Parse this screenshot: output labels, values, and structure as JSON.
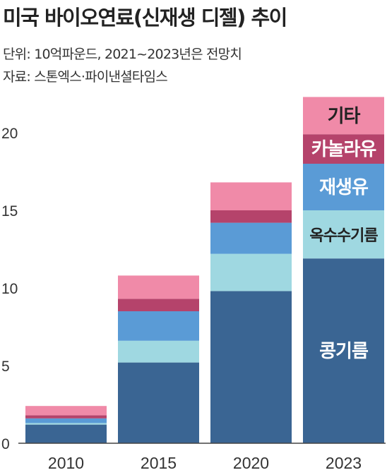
{
  "header": {
    "title": "미국 바이오연료(신재생 디젤) 추이",
    "unit_note": "단위: 10억파운드, 2021~2023년은 전망치",
    "source_note": "자료: 스톤엑스·파이낸셜타임스"
  },
  "chart_data": {
    "type": "bar",
    "stacked": true,
    "categories": [
      "2010",
      "2015",
      "2020",
      "2023"
    ],
    "series": [
      {
        "name": "콩기름",
        "color": "#3a6593",
        "values": [
          1.2,
          5.2,
          9.8,
          11.9
        ]
      },
      {
        "name": "옥수수기름",
        "color": "#9fd8e1",
        "values": [
          0.1,
          1.4,
          2.4,
          3.1
        ]
      },
      {
        "name": "재생유",
        "color": "#5a9bd6",
        "values": [
          0.3,
          1.9,
          2.0,
          3.0
        ]
      },
      {
        "name": "카놀라유",
        "color": "#b5436b",
        "values": [
          0.2,
          0.8,
          0.8,
          1.9
        ]
      },
      {
        "name": "기타",
        "color": "#f08aa8",
        "values": [
          0.6,
          1.5,
          1.8,
          2.4
        ]
      }
    ],
    "labeled_bar": "2023",
    "ylim": [
      0,
      22
    ],
    "yticks": [
      0,
      5,
      10,
      15,
      20
    ]
  }
}
